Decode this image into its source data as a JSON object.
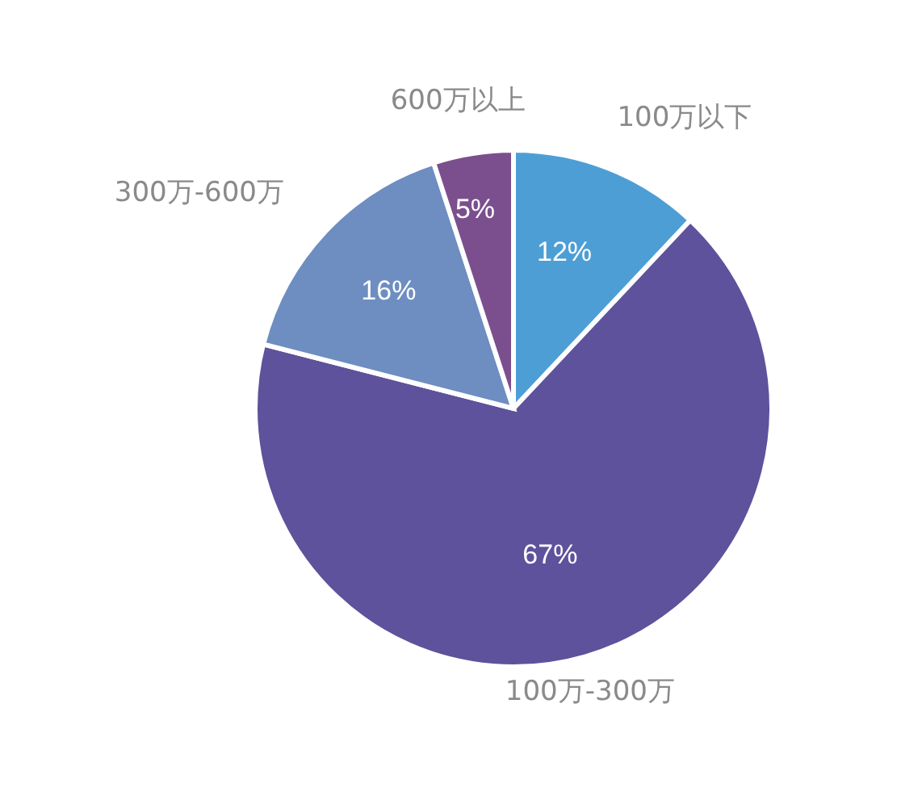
{
  "chart_data": {
    "type": "pie",
    "categories": [
      "100万以下",
      "100万-300万",
      "300万-600万",
      "600万以上"
    ],
    "values": [
      12,
      67,
      16,
      5
    ],
    "value_labels": [
      "12%",
      "67%",
      "16%",
      "5%"
    ],
    "colors": [
      "#4e9ed6",
      "#5d529b",
      "#6e8ec1",
      "#7b4f8e"
    ]
  }
}
